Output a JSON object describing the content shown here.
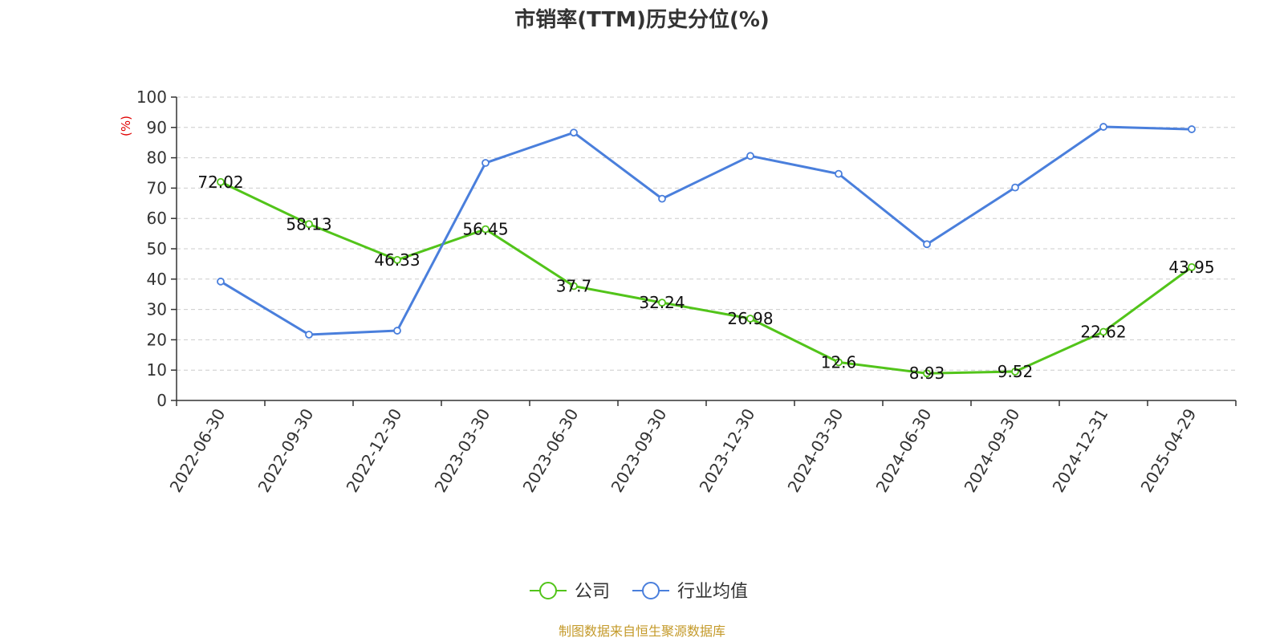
{
  "chart_data": {
    "type": "line",
    "title": "市销率(TTM)历史分位(%)",
    "ylabel": "(%)",
    "ylim": [
      0,
      100
    ],
    "yticks": [
      0,
      10,
      20,
      30,
      40,
      50,
      60,
      70,
      80,
      90,
      100
    ],
    "grid": true,
    "legend_position": "bottom-center",
    "categories": [
      "2022-06-30",
      "2022-09-30",
      "2022-12-30",
      "2023-03-30",
      "2023-06-30",
      "2023-09-30",
      "2023-12-30",
      "2024-03-30",
      "2024-06-30",
      "2024-09-30",
      "2024-12-31",
      "2025-04-29"
    ],
    "series": [
      {
        "name": "公司",
        "color": "#52c41a",
        "show_labels": true,
        "values": [
          72.02,
          58.13,
          46.33,
          56.45,
          37.7,
          32.24,
          26.98,
          12.6,
          8.93,
          9.52,
          22.62,
          43.95
        ],
        "labels": [
          "72.02",
          "58.13",
          "46.33",
          "56.45",
          "37.7",
          "32.24",
          "26.98",
          "12.6",
          "8.93",
          "9.52",
          "22.62",
          "43.95"
        ]
      },
      {
        "name": "行业均值",
        "color": "#4a7fdc",
        "show_labels": false,
        "values": [
          39.2,
          21.7,
          23.0,
          78.3,
          88.3,
          66.5,
          80.6,
          74.7,
          51.5,
          70.2,
          90.2,
          89.4
        ]
      }
    ],
    "source": "制图数据来自恒生聚源数据库",
    "colors": {
      "ylabel": "#e00000",
      "source": "#c49a2a",
      "grid": "#cccccc",
      "axis": "#333333"
    }
  }
}
